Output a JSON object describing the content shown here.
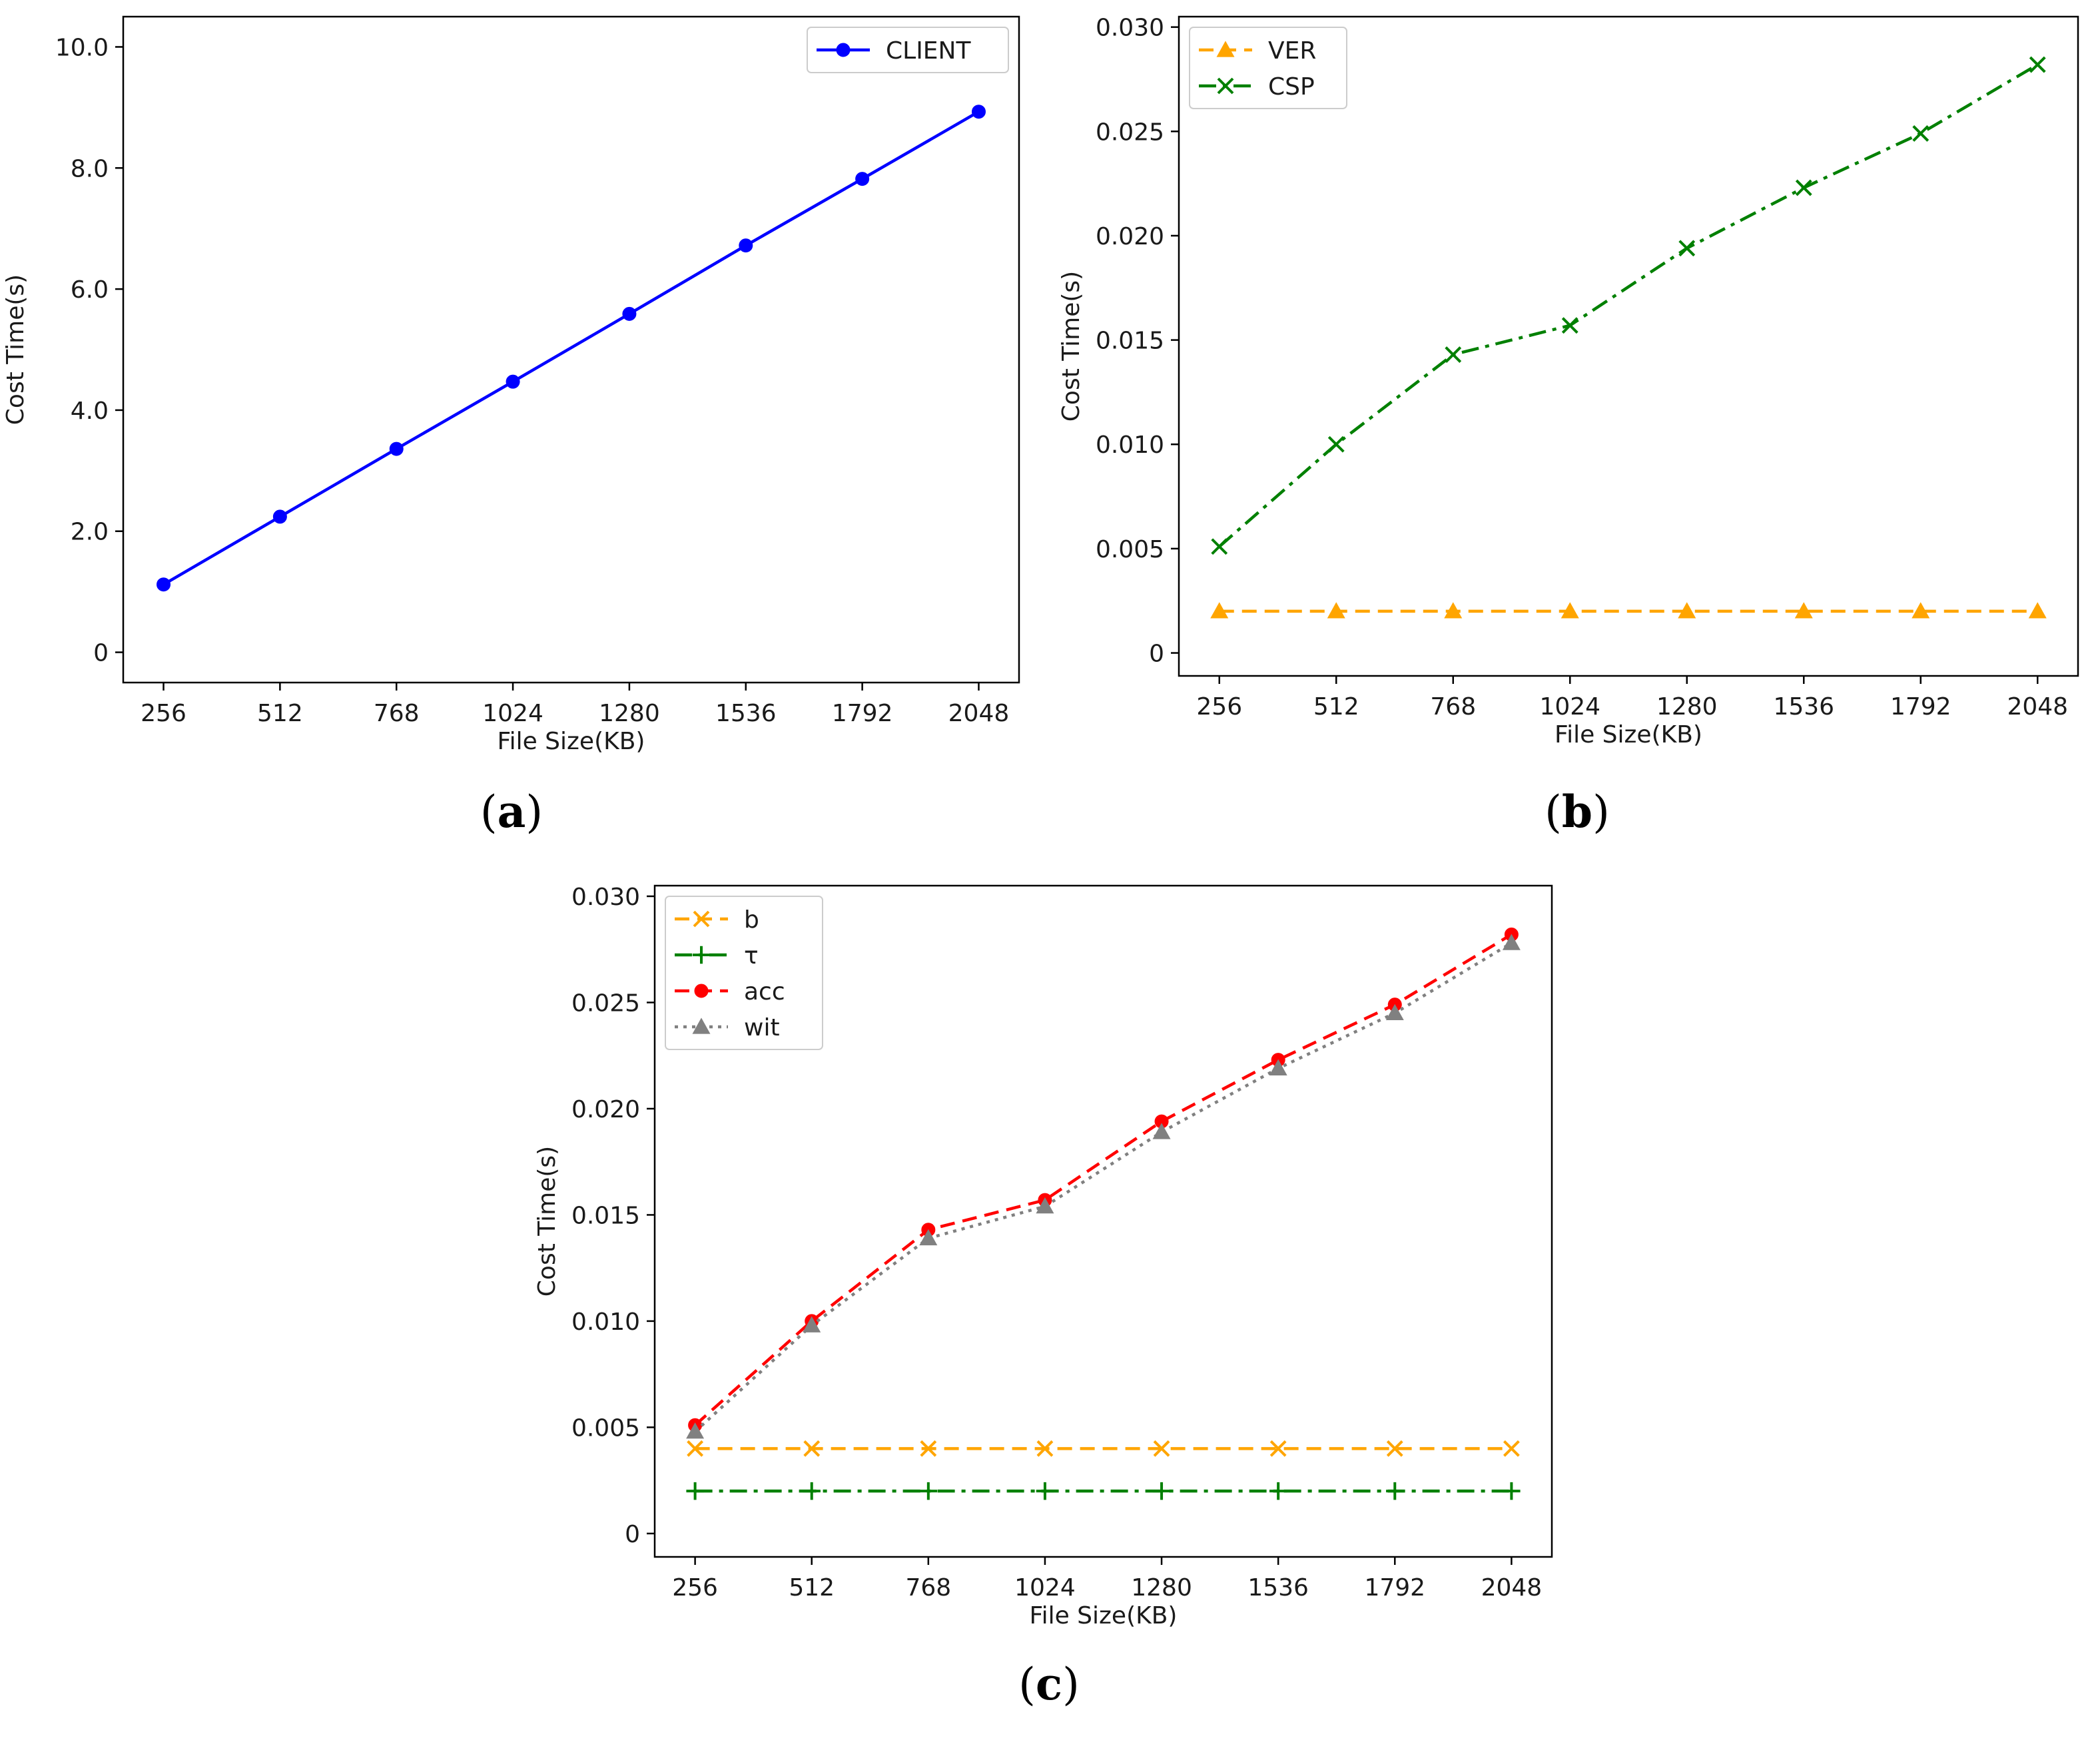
{
  "chart_data": [
    {
      "id": "a",
      "type": "line",
      "caption": {
        "open": "(",
        "letter": "a",
        "close": ")"
      },
      "xlabel": "File Size(KB)",
      "ylabel": "Cost Time(s)",
      "x_categories": [
        "256",
        "512",
        "768",
        "1024",
        "1280",
        "1536",
        "1792",
        "2048"
      ],
      "ylim": [
        -0.5,
        10.5
      ],
      "y_ticks": [
        0,
        2,
        4,
        6,
        8,
        10
      ],
      "y_tick_labels": [
        "0",
        "2.0",
        "4.0",
        "6.0",
        "8.0",
        "10.0"
      ],
      "grid": false,
      "legend_position": "upper right",
      "series": [
        {
          "name": "CLIENT",
          "color": "#0000ff",
          "dash": "solid",
          "marker": "circle",
          "values": [
            1.12,
            2.24,
            3.36,
            4.47,
            5.59,
            6.72,
            7.82,
            8.93
          ]
        }
      ]
    },
    {
      "id": "b",
      "type": "line",
      "caption": {
        "open": "(",
        "letter": "b",
        "close": ")"
      },
      "xlabel": "File Size(KB)",
      "ylabel": "Cost Time(s)",
      "x_categories": [
        "256",
        "512",
        "768",
        "1024",
        "1280",
        "1536",
        "1792",
        "2048"
      ],
      "ylim": [
        -0.0011,
        0.0305
      ],
      "y_ticks": [
        0,
        0.005,
        0.01,
        0.015,
        0.02,
        0.025,
        0.03
      ],
      "y_tick_labels": [
        "0",
        "0.005",
        "0.010",
        "0.015",
        "0.020",
        "0.025",
        "0.030"
      ],
      "grid": false,
      "legend_position": "upper left",
      "series": [
        {
          "name": "VER",
          "color": "#ffa500",
          "dash": "dashed",
          "marker": "triangle",
          "values": [
            0.002,
            0.002,
            0.002,
            0.002,
            0.002,
            0.002,
            0.002,
            0.002
          ]
        },
        {
          "name": "CSP",
          "color": "#008000",
          "dash": "dashdot",
          "marker": "x",
          "values": [
            0.0051,
            0.01,
            0.0143,
            0.0157,
            0.0194,
            0.0223,
            0.0249,
            0.0282
          ]
        }
      ]
    },
    {
      "id": "c",
      "type": "line",
      "caption": {
        "open": "(",
        "letter": "c",
        "close": ")"
      },
      "xlabel": "File Size(KB)",
      "ylabel": "Cost Time(s)",
      "x_categories": [
        "256",
        "512",
        "768",
        "1024",
        "1280",
        "1536",
        "1792",
        "2048"
      ],
      "ylim": [
        -0.0011,
        0.0305
      ],
      "y_ticks": [
        0,
        0.005,
        0.01,
        0.015,
        0.02,
        0.025,
        0.03
      ],
      "y_tick_labels": [
        "0",
        "0.005",
        "0.010",
        "0.015",
        "0.020",
        "0.025",
        "0.030"
      ],
      "grid": false,
      "legend_position": "upper left",
      "series": [
        {
          "name": "b",
          "color": "#ffa500",
          "dash": "dashed",
          "marker": "x",
          "values": [
            0.004,
            0.004,
            0.004,
            0.004,
            0.004,
            0.004,
            0.004,
            0.004
          ]
        },
        {
          "name": "τ",
          "color": "#008000",
          "dash": "dashdot",
          "marker": "plus",
          "values": [
            0.002,
            0.002,
            0.002,
            0.002,
            0.002,
            0.002,
            0.002,
            0.002
          ]
        },
        {
          "name": "acc",
          "color": "#ff0000",
          "dash": "dashed",
          "marker": "circle",
          "values": [
            0.0051,
            0.01,
            0.0143,
            0.0157,
            0.0194,
            0.0223,
            0.0249,
            0.0282
          ]
        },
        {
          "name": "wit",
          "color": "#808080",
          "dash": "dotted",
          "marker": "triangle",
          "values": [
            0.0048,
            0.0098,
            0.0139,
            0.0154,
            0.0189,
            0.0219,
            0.0245,
            0.0278
          ]
        }
      ]
    }
  ]
}
